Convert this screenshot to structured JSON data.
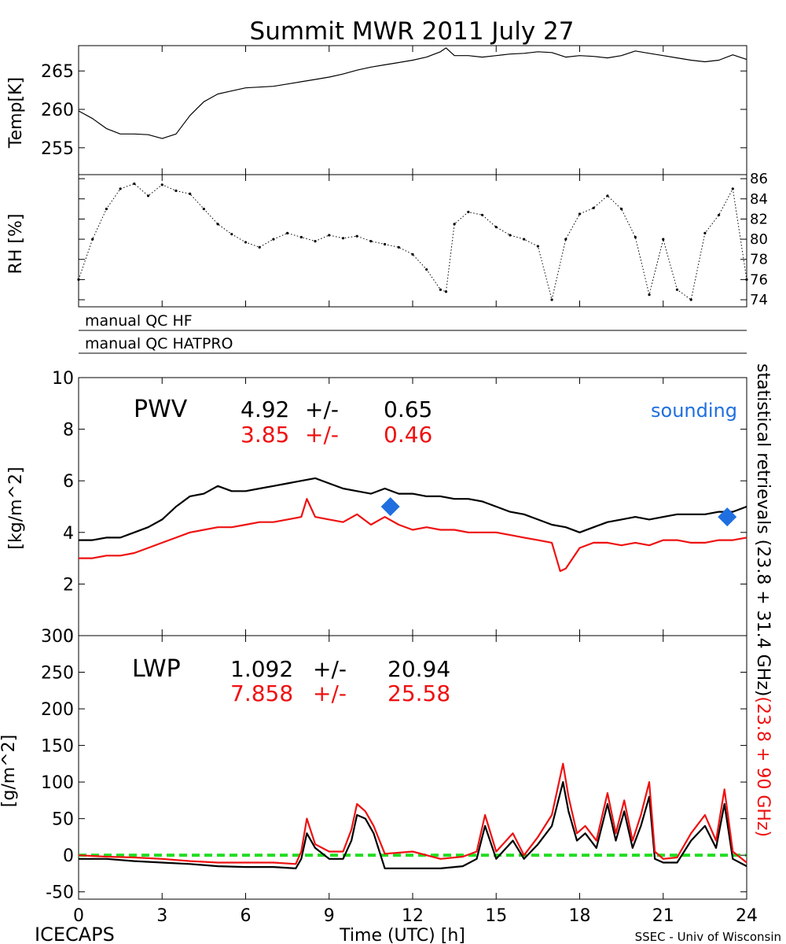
{
  "title": "Summit MWR 2011 July 27",
  "footer": {
    "left": "ICECAPS",
    "right": "SSEC - Univ of Wisconsin"
  },
  "colors": {
    "black": "#000000",
    "red": "#ee1111",
    "blue": "#1f6fe0",
    "green": "#22dd22"
  },
  "right_annotation": {
    "black_text": "statistical retrievals (23.8 + 31.4 GHz)",
    "red_text": "(23.8 + 90 GHz)"
  },
  "qc_labels": [
    "manual QC HF",
    "manual QC HATPRO"
  ],
  "pwv_stats": {
    "label": "PWV",
    "black_mean": "4.92",
    "black_pm": "+/-",
    "black_sd": "0.65",
    "red_mean": "3.85",
    "red_pm": "+/-",
    "red_sd": "0.46",
    "sounding_label": "sounding"
  },
  "lwp_stats": {
    "label": "LWP",
    "black_mean": "1.092",
    "black_pm": "+/-",
    "black_sd": "20.94",
    "red_mean": "7.858",
    "red_pm": "+/-",
    "red_sd": "25.58"
  },
  "chart_data": [
    {
      "id": "temp",
      "type": "line",
      "ylabel": "Temp[K]",
      "xlim": [
        0,
        24
      ],
      "ylim": [
        251.5,
        268.3
      ],
      "yticks": [
        255,
        260,
        265
      ],
      "series": [
        {
          "color": "#000000",
          "x": [
            0,
            0.5,
            1,
            1.5,
            2,
            2.5,
            3,
            3.5,
            4,
            4.5,
            5,
            5.5,
            6,
            6.5,
            7,
            7.5,
            8,
            8.5,
            9,
            9.5,
            10,
            10.5,
            11,
            11.5,
            12,
            12.5,
            13,
            13.2,
            13.5,
            14,
            14.5,
            15,
            15.5,
            16,
            16.5,
            17,
            17.5,
            18,
            18.5,
            19,
            19.5,
            20,
            20.5,
            21,
            21.5,
            22,
            22.5,
            23,
            23.5,
            24
          ],
          "y": [
            259.8,
            258.8,
            257.5,
            256.8,
            256.8,
            256.7,
            256.2,
            256.8,
            259.2,
            261.0,
            262.0,
            262.4,
            262.8,
            262.9,
            263.0,
            263.3,
            263.6,
            263.9,
            264.2,
            264.6,
            265.1,
            265.5,
            265.8,
            266.1,
            266.4,
            266.8,
            267.5,
            268.0,
            267.0,
            267.0,
            266.8,
            267.0,
            267.2,
            267.3,
            267.5,
            267.4,
            266.8,
            267.0,
            266.9,
            266.7,
            267.0,
            267.6,
            267.3,
            267.0,
            266.7,
            266.4,
            266.2,
            266.4,
            267.1,
            266.5
          ]
        }
      ]
    },
    {
      "id": "rh",
      "type": "scatter",
      "ylabel": "RH [%]",
      "xlim": [
        0,
        24
      ],
      "ylim": [
        73.3,
        86.4
      ],
      "yticks": [
        74,
        76,
        78,
        80,
        82,
        84,
        86
      ],
      "series": [
        {
          "color": "#000000",
          "x": [
            0,
            0.5,
            1,
            1.5,
            2,
            2.5,
            3,
            3.5,
            4,
            4.5,
            5,
            5.5,
            6,
            6.5,
            7,
            7.5,
            8,
            8.5,
            9,
            9.5,
            10,
            10.5,
            11,
            11.5,
            12,
            12.5,
            13,
            13.2,
            13.5,
            14,
            14.5,
            15,
            15.5,
            16,
            16.5,
            17,
            17.5,
            18,
            18.5,
            19,
            19.5,
            20,
            20.5,
            21,
            21.5,
            22,
            22.5,
            23,
            23.5,
            24
          ],
          "y": [
            76.0,
            80.0,
            83.0,
            85.0,
            85.5,
            84.3,
            85.4,
            84.8,
            84.5,
            83.0,
            81.5,
            80.5,
            79.7,
            79.2,
            80.0,
            80.6,
            80.2,
            79.8,
            80.4,
            80.1,
            80.3,
            79.8,
            79.5,
            79.2,
            78.5,
            77.0,
            75.0,
            74.8,
            81.5,
            82.7,
            82.4,
            81.2,
            80.4,
            80.0,
            79.3,
            74.0,
            80.0,
            82.5,
            83.1,
            84.3,
            83.0,
            80.2,
            74.5,
            80.0,
            75.0,
            74.0,
            80.6,
            82.4,
            85.0,
            76.0
          ]
        }
      ]
    },
    {
      "id": "pwv",
      "type": "line",
      "ylabel": "[kg/m^2]",
      "xlim": [
        0,
        24
      ],
      "ylim": [
        0,
        10
      ],
      "yticks": [
        0,
        2,
        4,
        6,
        8,
        10
      ],
      "series": [
        {
          "color": "#000000",
          "x": [
            0,
            0.5,
            1,
            1.5,
            2,
            2.5,
            3,
            3.5,
            4,
            4.5,
            5,
            5.5,
            6,
            6.5,
            7,
            7.5,
            8,
            8.5,
            9,
            9.5,
            10,
            10.5,
            11,
            11.5,
            12,
            12.5,
            13,
            13.5,
            14,
            14.5,
            15,
            15.5,
            16,
            16.5,
            17,
            17.5,
            18,
            18.5,
            19,
            19.5,
            20,
            20.5,
            21,
            21.5,
            22,
            22.5,
            23,
            23.5,
            24
          ],
          "y": [
            3.7,
            3.7,
            3.8,
            3.8,
            4.0,
            4.2,
            4.5,
            5.0,
            5.4,
            5.5,
            5.8,
            5.6,
            5.6,
            5.7,
            5.8,
            5.9,
            6.0,
            6.1,
            5.9,
            5.7,
            5.6,
            5.5,
            5.7,
            5.5,
            5.5,
            5.4,
            5.4,
            5.3,
            5.3,
            5.2,
            5.0,
            4.8,
            4.7,
            4.5,
            4.3,
            4.2,
            4.0,
            4.2,
            4.4,
            4.5,
            4.6,
            4.5,
            4.6,
            4.7,
            4.7,
            4.7,
            4.8,
            4.8,
            5.0
          ]
        },
        {
          "color": "#ee1111",
          "x": [
            0,
            0.5,
            1,
            1.5,
            2,
            2.5,
            3,
            3.5,
            4,
            4.5,
            5,
            5.5,
            6,
            6.5,
            7,
            7.5,
            8,
            8.2,
            8.5,
            9,
            9.5,
            10,
            10.5,
            11,
            11.5,
            12,
            12.5,
            13,
            13.5,
            14,
            14.5,
            15,
            15.5,
            16,
            16.5,
            17,
            17.3,
            17.5,
            18,
            18.5,
            19,
            19.5,
            20,
            20.5,
            21,
            21.5,
            22,
            22.5,
            23,
            23.5,
            24
          ],
          "y": [
            3.0,
            3.0,
            3.1,
            3.1,
            3.2,
            3.4,
            3.6,
            3.8,
            4.0,
            4.1,
            4.2,
            4.2,
            4.3,
            4.4,
            4.4,
            4.5,
            4.6,
            5.3,
            4.6,
            4.5,
            4.4,
            4.7,
            4.3,
            4.6,
            4.3,
            4.1,
            4.2,
            4.1,
            4.1,
            4.0,
            4.0,
            4.0,
            3.9,
            3.8,
            3.7,
            3.6,
            2.5,
            2.6,
            3.4,
            3.6,
            3.6,
            3.5,
            3.6,
            3.5,
            3.7,
            3.7,
            3.6,
            3.6,
            3.7,
            3.7,
            3.8
          ]
        }
      ],
      "sounding": {
        "color": "#1f6fe0",
        "x": [
          11.2,
          23.3
        ],
        "y": [
          5.0,
          4.6
        ]
      }
    },
    {
      "id": "lwp",
      "type": "line",
      "ylabel": "[g/m^2]",
      "xlabel": "Time (UTC) [h]",
      "xlim": [
        0,
        24
      ],
      "ylim": [
        -60,
        300
      ],
      "yticks": [
        -50,
        0,
        50,
        100,
        150,
        200,
        250,
        300
      ],
      "xticks": [
        0,
        3,
        6,
        9,
        12,
        15,
        18,
        21,
        24
      ],
      "zero_line": {
        "y": 0,
        "color": "#22dd22"
      },
      "series": [
        {
          "color": "#000000",
          "x": [
            0,
            1,
            2,
            3,
            4,
            5,
            6,
            7,
            7.8,
            8.0,
            8.2,
            8.5,
            9.0,
            9.5,
            9.8,
            10.0,
            10.3,
            10.6,
            11.0,
            12.0,
            13.0,
            13.8,
            14.3,
            14.6,
            15.0,
            15.6,
            16.0,
            16.5,
            17.0,
            17.4,
            17.6,
            17.9,
            18.2,
            18.6,
            19.0,
            19.3,
            19.6,
            19.9,
            20.2,
            20.5,
            20.7,
            21.0,
            21.5,
            22.0,
            22.5,
            22.9,
            23.2,
            23.5,
            24
          ],
          "y": [
            -5,
            -5,
            -8,
            -10,
            -12,
            -15,
            -16,
            -16,
            -18,
            -5,
            30,
            10,
            -5,
            -5,
            20,
            55,
            50,
            30,
            -18,
            -18,
            -18,
            -15,
            -5,
            40,
            -5,
            20,
            -5,
            15,
            40,
            100,
            60,
            20,
            30,
            10,
            70,
            20,
            60,
            10,
            40,
            80,
            -5,
            -10,
            -10,
            20,
            40,
            10,
            70,
            -5,
            -15
          ]
        },
        {
          "color": "#ee1111",
          "x": [
            0,
            1,
            2,
            3,
            4,
            5,
            6,
            7,
            7.8,
            8.0,
            8.2,
            8.5,
            9.0,
            9.5,
            9.8,
            10.0,
            10.3,
            10.6,
            11.0,
            12.0,
            13.0,
            13.8,
            14.3,
            14.6,
            15.0,
            15.6,
            16.0,
            16.5,
            17.0,
            17.4,
            17.6,
            17.9,
            18.2,
            18.6,
            19.0,
            19.3,
            19.6,
            19.9,
            20.2,
            20.5,
            20.7,
            21.0,
            21.5,
            22.0,
            22.5,
            22.9,
            23.2,
            23.5,
            24
          ],
          "y": [
            0,
            -2,
            -3,
            -5,
            -8,
            -10,
            -10,
            -10,
            -12,
            5,
            50,
            15,
            5,
            5,
            35,
            70,
            60,
            40,
            2,
            5,
            -5,
            -2,
            5,
            55,
            5,
            30,
            0,
            25,
            55,
            125,
            80,
            30,
            40,
            20,
            85,
            30,
            75,
            20,
            55,
            100,
            5,
            -5,
            -3,
            30,
            55,
            20,
            90,
            5,
            -10
          ]
        }
      ]
    }
  ]
}
